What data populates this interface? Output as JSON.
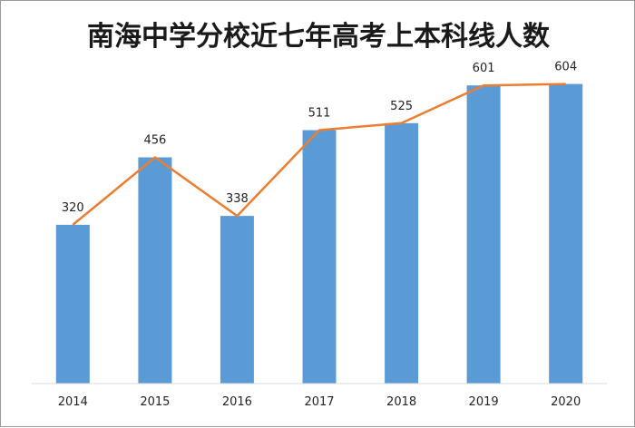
{
  "chart_data": {
    "type": "bar",
    "title": "南海中学分校近七年高考上本科线人数",
    "xlabel": "",
    "ylabel": "",
    "categories": [
      "2014",
      "2015",
      "2016",
      "2017",
      "2018",
      "2019",
      "2020"
    ],
    "values": [
      320,
      456,
      338,
      511,
      525,
      601,
      604
    ],
    "overlay": "line",
    "ylim": [
      0,
      680
    ],
    "grid": false,
    "legend": "none",
    "colors": {
      "bar": "#5b9bd5",
      "line": "#ed7d31"
    }
  }
}
